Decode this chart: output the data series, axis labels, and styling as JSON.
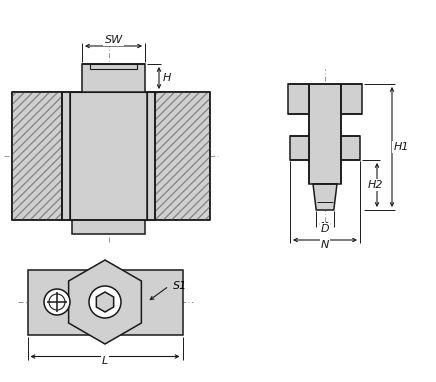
{
  "bg_color": "#ffffff",
  "line_color": "#1a1a1a",
  "fill_color": "#d0d0d0",
  "hatch_color": "#888888",
  "fig_width": 4.36,
  "fig_height": 3.82,
  "dpi": 100,
  "labels": [
    "SW",
    "H",
    "H1",
    "H2",
    "D",
    "N",
    "L",
    "S1"
  ]
}
